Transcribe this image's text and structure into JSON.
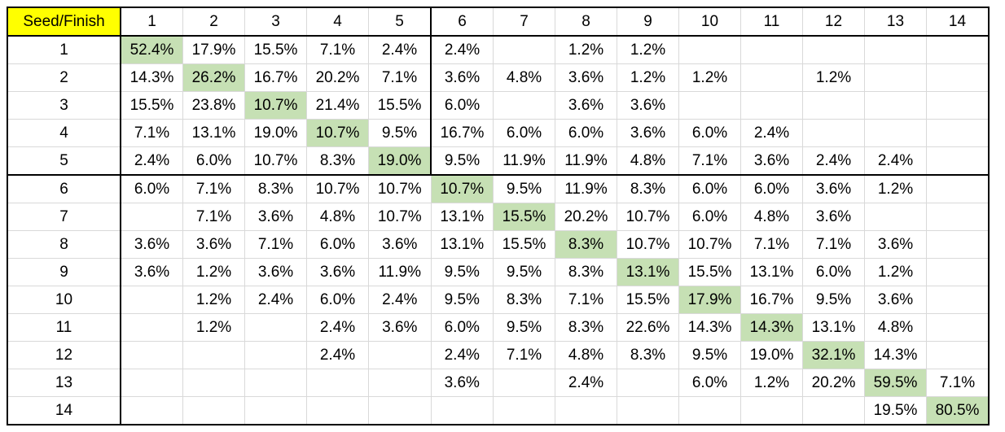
{
  "chart_data": {
    "type": "table",
    "corner_label": "Seed/Finish",
    "columns": [
      "1",
      "2",
      "3",
      "4",
      "5",
      "6",
      "7",
      "8",
      "9",
      "10",
      "11",
      "12",
      "13",
      "14"
    ],
    "rows": [
      {
        "label": "1",
        "cells": [
          "52.4%",
          "17.9%",
          "15.5%",
          "7.1%",
          "2.4%",
          "2.4%",
          "",
          "1.2%",
          "1.2%",
          "",
          "",
          "",
          "",
          ""
        ]
      },
      {
        "label": "2",
        "cells": [
          "14.3%",
          "26.2%",
          "16.7%",
          "20.2%",
          "7.1%",
          "3.6%",
          "4.8%",
          "3.6%",
          "1.2%",
          "1.2%",
          "",
          "1.2%",
          "",
          ""
        ]
      },
      {
        "label": "3",
        "cells": [
          "15.5%",
          "23.8%",
          "10.7%",
          "21.4%",
          "15.5%",
          "6.0%",
          "",
          "3.6%",
          "3.6%",
          "",
          "",
          "",
          "",
          ""
        ]
      },
      {
        "label": "4",
        "cells": [
          "7.1%",
          "13.1%",
          "19.0%",
          "10.7%",
          "9.5%",
          "16.7%",
          "6.0%",
          "6.0%",
          "3.6%",
          "6.0%",
          "2.4%",
          "",
          "",
          ""
        ]
      },
      {
        "label": "5",
        "cells": [
          "2.4%",
          "6.0%",
          "10.7%",
          "8.3%",
          "19.0%",
          "9.5%",
          "11.9%",
          "11.9%",
          "4.8%",
          "7.1%",
          "3.6%",
          "2.4%",
          "2.4%",
          ""
        ]
      },
      {
        "label": "6",
        "cells": [
          "6.0%",
          "7.1%",
          "8.3%",
          "10.7%",
          "10.7%",
          "10.7%",
          "9.5%",
          "11.9%",
          "8.3%",
          "6.0%",
          "6.0%",
          "3.6%",
          "1.2%",
          ""
        ]
      },
      {
        "label": "7",
        "cells": [
          "",
          "7.1%",
          "3.6%",
          "4.8%",
          "10.7%",
          "13.1%",
          "15.5%",
          "20.2%",
          "10.7%",
          "6.0%",
          "4.8%",
          "3.6%",
          "",
          ""
        ]
      },
      {
        "label": "8",
        "cells": [
          "3.6%",
          "3.6%",
          "7.1%",
          "6.0%",
          "3.6%",
          "13.1%",
          "15.5%",
          "8.3%",
          "10.7%",
          "10.7%",
          "7.1%",
          "7.1%",
          "3.6%",
          ""
        ]
      },
      {
        "label": "9",
        "cells": [
          "3.6%",
          "1.2%",
          "3.6%",
          "3.6%",
          "11.9%",
          "9.5%",
          "9.5%",
          "8.3%",
          "13.1%",
          "15.5%",
          "13.1%",
          "6.0%",
          "1.2%",
          ""
        ]
      },
      {
        "label": "10",
        "cells": [
          "",
          "1.2%",
          "2.4%",
          "6.0%",
          "2.4%",
          "9.5%",
          "8.3%",
          "7.1%",
          "15.5%",
          "17.9%",
          "16.7%",
          "9.5%",
          "3.6%",
          ""
        ]
      },
      {
        "label": "11",
        "cells": [
          "",
          "1.2%",
          "",
          "2.4%",
          "3.6%",
          "6.0%",
          "9.5%",
          "8.3%",
          "22.6%",
          "14.3%",
          "14.3%",
          "13.1%",
          "4.8%",
          ""
        ]
      },
      {
        "label": "12",
        "cells": [
          "",
          "",
          "",
          "2.4%",
          "",
          "2.4%",
          "7.1%",
          "4.8%",
          "8.3%",
          "9.5%",
          "19.0%",
          "32.1%",
          "14.3%",
          ""
        ]
      },
      {
        "label": "13",
        "cells": [
          "",
          "",
          "",
          "",
          "",
          "3.6%",
          "",
          "2.4%",
          "",
          "6.0%",
          "1.2%",
          "20.2%",
          "59.5%",
          "7.1%"
        ]
      },
      {
        "label": "14",
        "cells": [
          "",
          "",
          "",
          "",
          "",
          "",
          "",
          "",
          "",
          "",
          "",
          "",
          "19.5%",
          "80.5%"
        ]
      }
    ],
    "highlight_color": "#c6e0b4",
    "corner_color": "#ffff00"
  }
}
